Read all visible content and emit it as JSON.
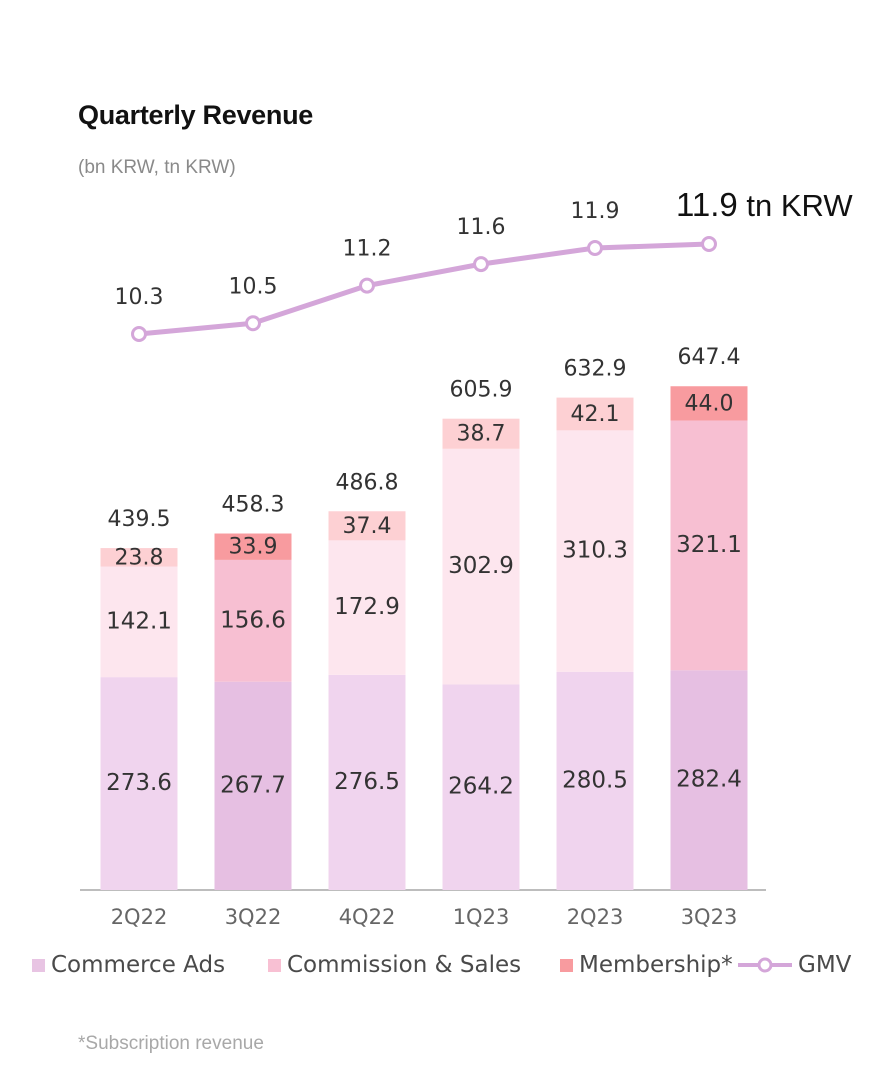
{
  "header": {
    "title": "Quarterly Revenue",
    "subtitle": "(bn KRW, tn KRW)",
    "gmv_current_value": "11.9",
    "gmv_current_unit": "tn KRW"
  },
  "footnote": "*Subscription revenue",
  "legend": [
    {
      "label": "Commerce Ads",
      "color": "#e8c4e3"
    },
    {
      "label": "Commission & Sales",
      "color": "#f8c0d3"
    },
    {
      "label": "Membership*",
      "color": "#f89b9f"
    },
    {
      "label": "GMV",
      "color": "#d4a6d9"
    }
  ],
  "colors": {
    "ads_light": "#f0d4ee",
    "ads_dark": "#e6bfe2",
    "commission_light": "#fde6ee",
    "commission_dark": "#f7bfd2",
    "membership_light": "#fdd0d3",
    "membership_dark": "#f89b9f",
    "gmv_line": "#d4a6d9",
    "axis": "#bdbdbd",
    "label_text": "#333333",
    "tick_text": "#666666"
  },
  "chart_data": {
    "type": "bar",
    "stacked": true,
    "categories": [
      "2Q22",
      "3Q22",
      "4Q22",
      "1Q23",
      "2Q23",
      "3Q23"
    ],
    "highlight_year_over_year": [
      false,
      true,
      false,
      false,
      false,
      true
    ],
    "series": [
      {
        "name": "Commerce Ads",
        "values": [
          273.6,
          267.7,
          276.5,
          264.2,
          280.5,
          282.4
        ]
      },
      {
        "name": "Commission & Sales",
        "values": [
          142.1,
          156.6,
          172.9,
          302.9,
          310.3,
          321.1
        ]
      },
      {
        "name": "Membership*",
        "values": [
          23.8,
          33.9,
          37.4,
          38.7,
          42.1,
          44.0
        ]
      }
    ],
    "totals": [
      439.5,
      458.3,
      486.8,
      605.9,
      632.9,
      647.4
    ],
    "line_series": {
      "name": "GMV",
      "values": [
        10.3,
        10.5,
        11.2,
        11.6,
        11.9,
        11.9
      ]
    },
    "value_labels": {
      "ads": [
        "273.6",
        "267.7",
        "276.5",
        "264.2",
        "280.5",
        "282.4"
      ],
      "commission": [
        "142.1",
        "156.6",
        "172.9",
        "302.9",
        "310.3",
        "321.1"
      ],
      "membership": [
        "23.8",
        "33.9",
        "37.4",
        "38.7",
        "42.1",
        "44.0"
      ],
      "totals": [
        "439.5",
        "458.3",
        "486.8",
        "605.9",
        "632.9",
        "647.4"
      ],
      "gmv": [
        "10.3",
        "10.5",
        "11.2",
        "11.6",
        "11.9",
        ""
      ]
    },
    "ylim_bar": [
      0,
      780
    ],
    "ylim_line": [
      9.2,
      12.0
    ],
    "grid": false
  }
}
